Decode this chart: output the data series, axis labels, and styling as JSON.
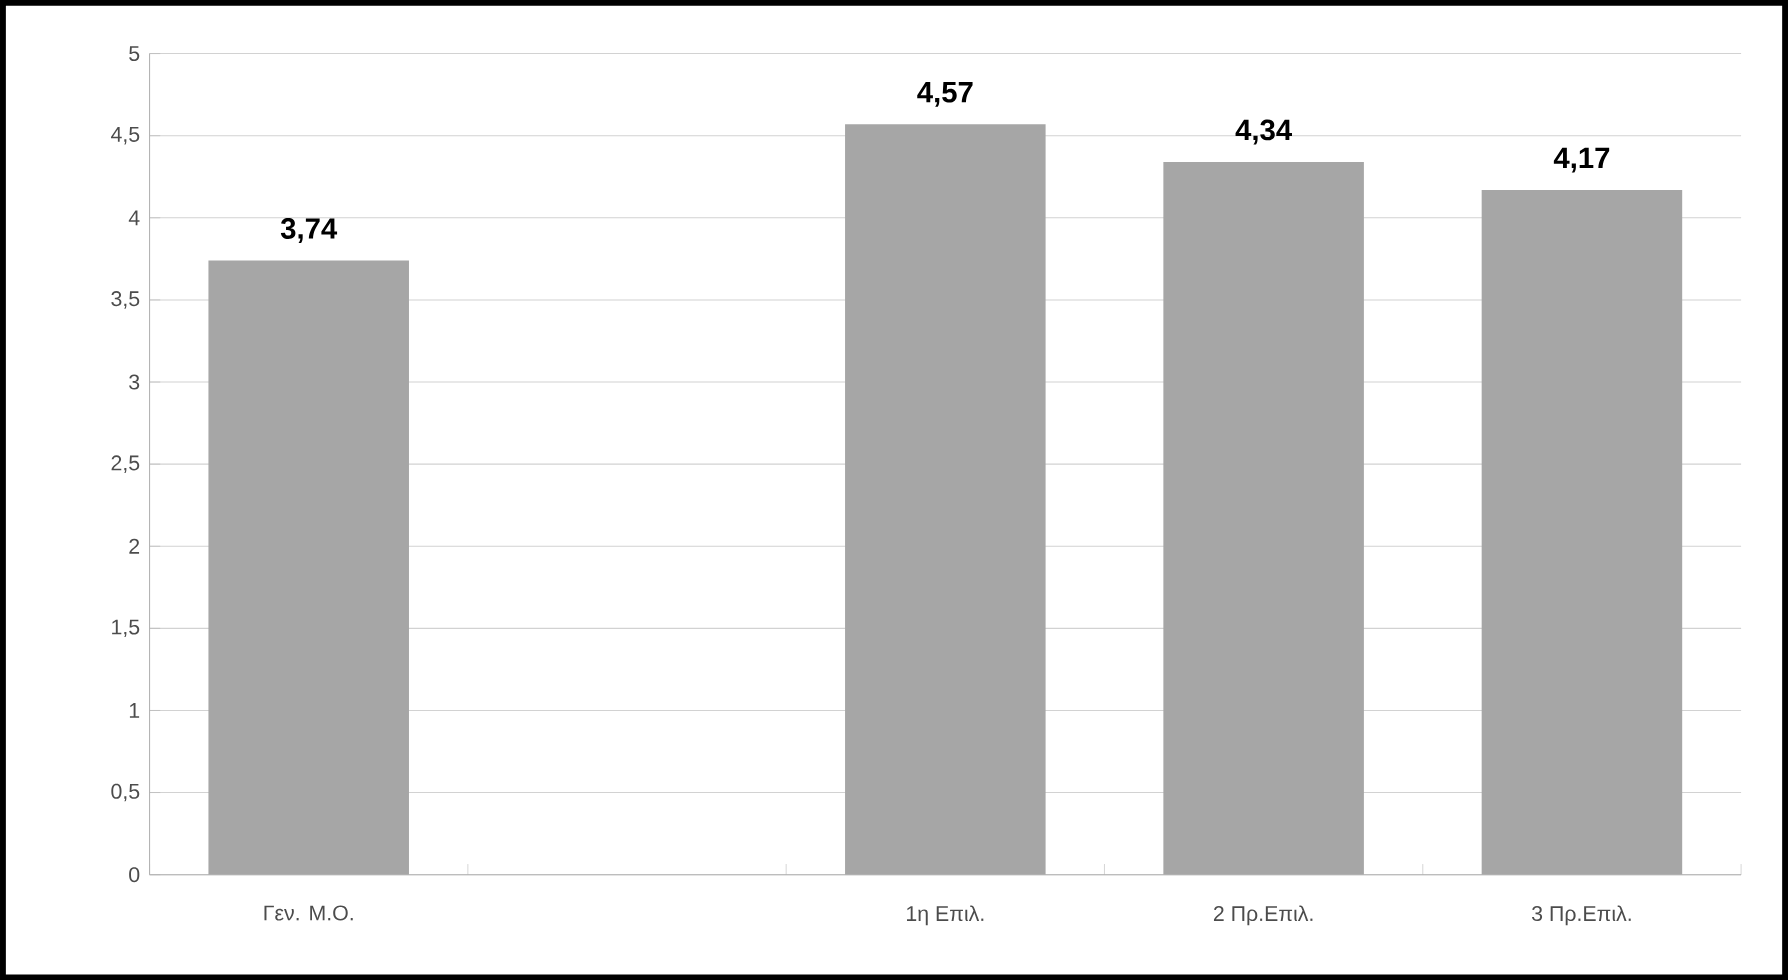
{
  "chart_data": {
    "type": "bar",
    "categories": [
      "Γεν. Μ.Ο.",
      null,
      "1η Επιλ.",
      "2 Πρ.Επιλ.",
      "3 Πρ.Επιλ."
    ],
    "values": [
      3.74,
      null,
      4.57,
      4.34,
      4.17
    ],
    "value_labels": [
      "3,74",
      null,
      "4,57",
      "4,34",
      "4,17"
    ],
    "color": "#a6a6a6",
    "ylim": [
      0,
      5
    ],
    "yticks": [
      0,
      {
        "value": 0.5,
        "label": "0,5"
      },
      1,
      {
        "value": 1.5,
        "label": "1,5"
      },
      2,
      {
        "value": 2.5,
        "label": "2,5"
      },
      3,
      {
        "value": 3.5,
        "label": "3,5"
      },
      4,
      {
        "value": 4.5,
        "label": "4,5"
      },
      5
    ],
    "grid": "y"
  }
}
